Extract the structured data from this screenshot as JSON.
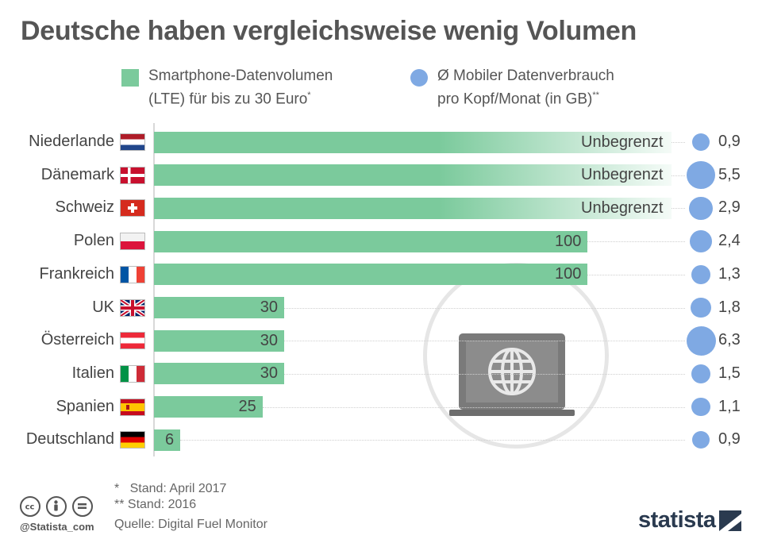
{
  "title": "Deutsche haben vergleichsweise wenig Volumen",
  "legend": {
    "series1_line1": "Smartphone-Datenvolumen",
    "series1_line2": "(LTE) für bis zu 30 Euro",
    "series1_mark": "*",
    "series2_line1": "Ø Mobiler Datenverbrauch",
    "series2_line2": "pro Kopf/Monat (in GB)",
    "series2_mark": "**"
  },
  "chart_data": {
    "type": "bar",
    "orientation": "horizontal",
    "categories": [
      "Niederlande",
      "Dänemark",
      "Schweiz",
      "Polen",
      "Frankreich",
      "UK",
      "Österreich",
      "Italien",
      "Spanien",
      "Deutschland"
    ],
    "series": [
      {
        "name": "Smartphone-Datenvolumen (LTE) für bis zu 30 Euro",
        "values": [
          null,
          null,
          null,
          100,
          100,
          30,
          30,
          30,
          25,
          6
        ],
        "labels": [
          "Unbegrenzt",
          "Unbegrenzt",
          "Unbegrenzt",
          "100",
          "100",
          "30",
          "30",
          "30",
          "25",
          "6"
        ]
      },
      {
        "name": "Ø Mobiler Datenverbrauch pro Kopf/Monat (in GB)",
        "values": [
          0.9,
          5.5,
          2.9,
          2.4,
          1.3,
          1.8,
          6.3,
          1.5,
          1.1,
          0.9
        ],
        "labels": [
          "0,9",
          "5,5",
          "2,9",
          "2,4",
          "1,3",
          "1,8",
          "6,3",
          "1,5",
          "1,1",
          "0,9"
        ]
      }
    ],
    "xlim": [
      0,
      120
    ]
  },
  "footnotes": {
    "note1_mark": "*",
    "note1_text": "Stand: April 2017",
    "note2_mark": "**",
    "note2_text": "Stand: 2016",
    "source": "Quelle: Digital Fuel Monitor"
  },
  "footer": {
    "handle": "@Statista_com",
    "brand": "statista"
  },
  "colors": {
    "bar": "#7bca9c",
    "circle": "#7fa9e3"
  }
}
